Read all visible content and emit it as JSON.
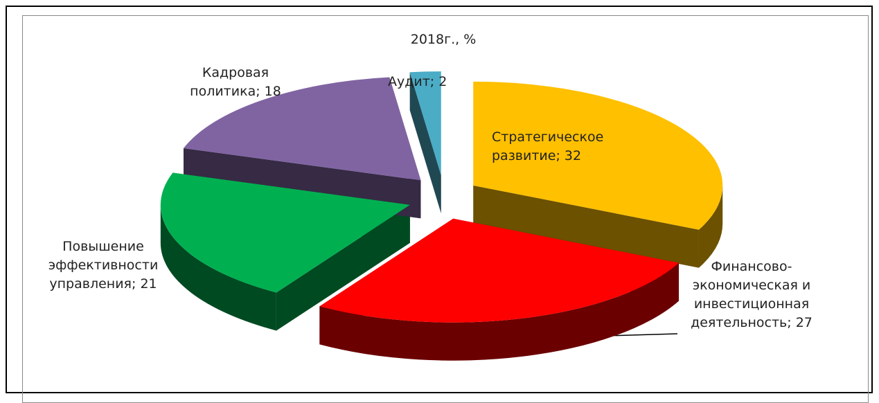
{
  "chart_data": {
    "type": "pie",
    "title": "2018г., %",
    "categories": [
      "Стратегическое развитие",
      "Финансово-экономическая и инвестиционная деятельность",
      "Повышение эффективности управления",
      "Кадровая политика",
      "Аудит"
    ],
    "values": [
      32,
      27,
      21,
      18,
      2
    ],
    "colors": [
      "#FFC000",
      "#FF0000",
      "#00B050",
      "#8064A2",
      "#4BACC6"
    ],
    "label_separator": "; "
  }
}
